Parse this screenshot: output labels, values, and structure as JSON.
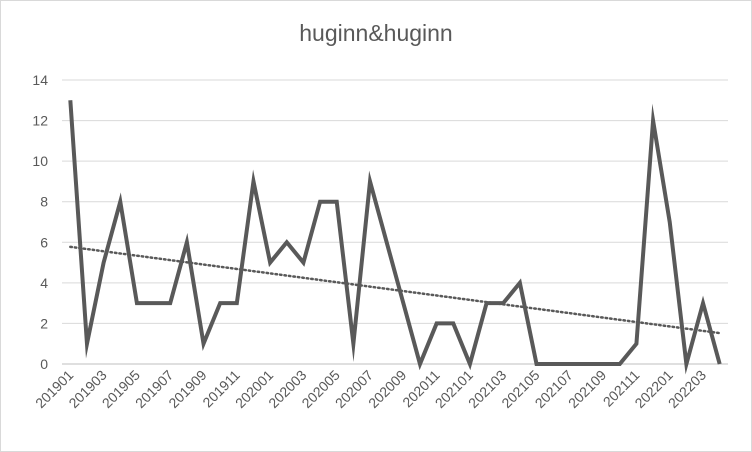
{
  "chart_data": {
    "type": "line",
    "title": "huginn&huginn",
    "xlabel": "",
    "ylabel": "",
    "ylim": [
      0,
      14
    ],
    "yticks": [
      0,
      2,
      4,
      6,
      8,
      10,
      12,
      14
    ],
    "grid": true,
    "legend": "none",
    "x": [
      "201901",
      "201902",
      "201903",
      "201904",
      "201905",
      "201906",
      "201907",
      "201908",
      "201909",
      "201910",
      "201911",
      "201912",
      "202001",
      "202002",
      "202003",
      "202004",
      "202005",
      "202006",
      "202007",
      "202008",
      "202009",
      "202010",
      "202011",
      "202012",
      "202101",
      "202102",
      "202103",
      "202104",
      "202105",
      "202106",
      "202107",
      "202108",
      "202109",
      "202110",
      "202111",
      "202112",
      "202201",
      "202202",
      "202203",
      "202204"
    ],
    "xtick_labels": [
      "201901",
      "201903",
      "201905",
      "201907",
      "201909",
      "201911",
      "202001",
      "202003",
      "202005",
      "202007",
      "202009",
      "202011",
      "202101",
      "202103",
      "202105",
      "202107",
      "202109",
      "202111",
      "202201",
      "202203"
    ],
    "series": [
      {
        "color": "#595959",
        "values": [
          13,
          1,
          5,
          8,
          3,
          3,
          3,
          6,
          1,
          3,
          3,
          9,
          5,
          6,
          5,
          8,
          8,
          1,
          9,
          6,
          3,
          0,
          2,
          2,
          0,
          3,
          3,
          4,
          0,
          0,
          0,
          0,
          0,
          0,
          1,
          12,
          7,
          0,
          3,
          0
        ]
      }
    ],
    "trendline": {
      "type": "linear",
      "style": "dotted",
      "color": "#595959"
    }
  }
}
